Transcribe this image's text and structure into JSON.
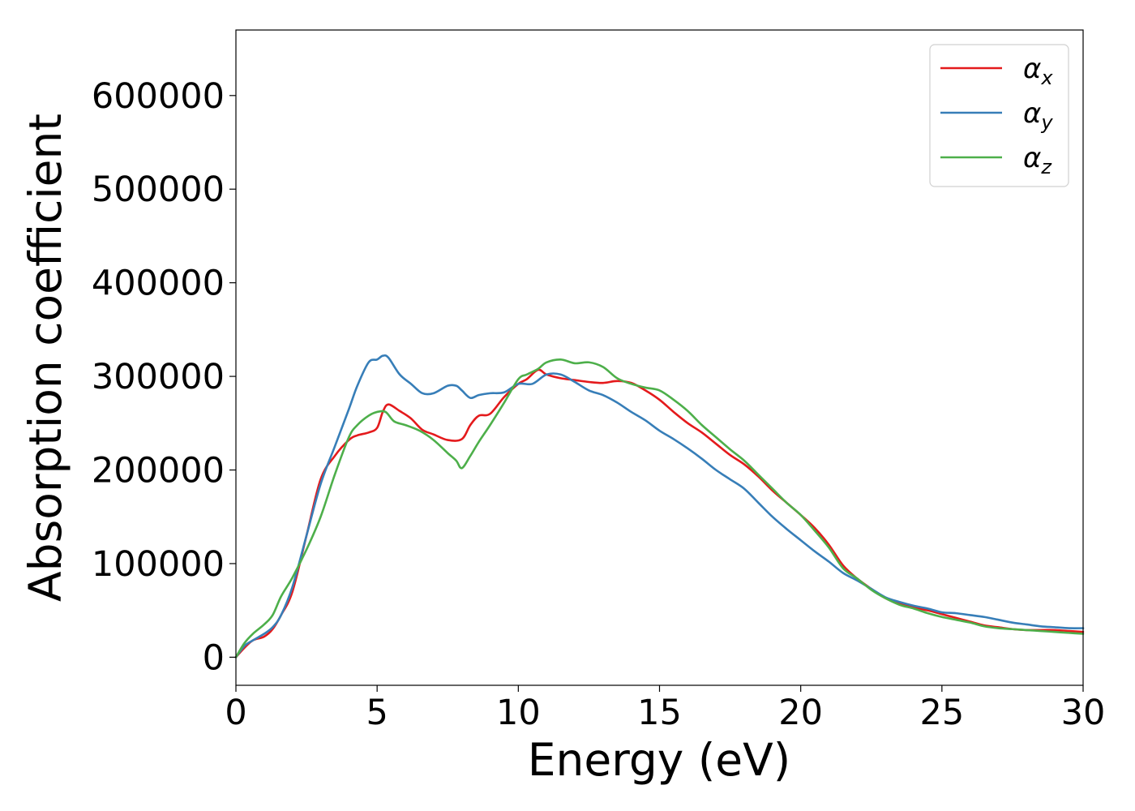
{
  "chart_data": {
    "type": "line",
    "title": "",
    "xlabel": "Energy (eV)",
    "ylabel": "Absorption coefficient",
    "xlim": [
      0,
      30
    ],
    "ylim": [
      -30000,
      670000
    ],
    "xticks": [
      0,
      5,
      10,
      15,
      20,
      25,
      30
    ],
    "yticks": [
      0,
      100000,
      200000,
      300000,
      400000,
      500000,
      600000
    ],
    "xtick_labels": [
      "0",
      "5",
      "10",
      "15",
      "20",
      "25",
      "30"
    ],
    "ytick_labels": [
      "0",
      "100000",
      "200000",
      "300000",
      "400000",
      "500000",
      "600000"
    ],
    "grid": false,
    "legend_position": "top-right",
    "series": [
      {
        "name": "α",
        "subscript": "x",
        "color": "#e41a1c",
        "x": [
          0,
          0.3,
          0.6,
          1.0,
          1.3,
          1.6,
          2.0,
          2.5,
          3.0,
          3.5,
          4.0,
          4.3,
          4.7,
          5.0,
          5.2,
          5.4,
          5.8,
          6.2,
          6.6,
          7.0,
          7.5,
          8.0,
          8.3,
          8.6,
          9.0,
          9.5,
          10.0,
          10.3,
          10.7,
          11.0,
          11.5,
          12.0,
          12.5,
          13.0,
          13.5,
          14.0,
          14.5,
          15.0,
          15.5,
          16.0,
          16.5,
          17.0,
          17.5,
          18.0,
          18.5,
          19.0,
          19.5,
          20.0,
          20.5,
          21.0,
          21.5,
          22.0,
          22.5,
          23.0,
          23.5,
          24.0,
          24.5,
          25.0,
          25.5,
          26.0,
          26.5,
          27.0,
          27.5,
          28.0,
          28.5,
          29.0,
          29.5,
          30.0
        ],
        "values": [
          0,
          10000,
          18000,
          22000,
          30000,
          45000,
          70000,
          130000,
          190000,
          215000,
          232000,
          237000,
          240000,
          245000,
          262000,
          270000,
          263000,
          255000,
          243000,
          238000,
          232000,
          233000,
          248000,
          258000,
          260000,
          278000,
          292000,
          297000,
          307000,
          302000,
          298000,
          296000,
          294000,
          293000,
          295000,
          293000,
          285000,
          275000,
          262000,
          250000,
          240000,
          228000,
          216000,
          206000,
          193000,
          178000,
          165000,
          152000,
          138000,
          120000,
          98000,
          84000,
          73000,
          63000,
          57000,
          53000,
          50000,
          46000,
          42000,
          38000,
          34000,
          32000,
          30000,
          29000,
          29000,
          29000,
          28000,
          27000
        ]
      },
      {
        "name": "α",
        "subscript": "y",
        "color": "#377eb8",
        "x": [
          0,
          0.3,
          0.6,
          1.0,
          1.3,
          1.6,
          2.0,
          2.5,
          3.0,
          3.5,
          4.0,
          4.3,
          4.7,
          5.0,
          5.2,
          5.4,
          5.8,
          6.2,
          6.6,
          7.0,
          7.5,
          7.8,
          8.0,
          8.3,
          8.6,
          9.0,
          9.5,
          10.0,
          10.5,
          11.0,
          11.5,
          12.0,
          12.5,
          13.0,
          13.5,
          14.0,
          14.5,
          15.0,
          15.5,
          16.0,
          16.5,
          17.0,
          17.5,
          18.0,
          18.5,
          19.0,
          19.5,
          20.0,
          20.5,
          21.0,
          21.5,
          22.0,
          22.5,
          23.0,
          23.5,
          24.0,
          24.5,
          25.0,
          25.5,
          26.0,
          26.5,
          27.0,
          27.5,
          28.0,
          28.5,
          29.0,
          29.5,
          30.0
        ],
        "values": [
          0,
          12000,
          18000,
          25000,
          32000,
          45000,
          75000,
          130000,
          185000,
          225000,
          265000,
          290000,
          315000,
          318000,
          322000,
          320000,
          302000,
          292000,
          282000,
          282000,
          290000,
          290000,
          285000,
          277000,
          280000,
          282000,
          283000,
          292000,
          292000,
          302000,
          302000,
          294000,
          285000,
          280000,
          272000,
          262000,
          253000,
          242000,
          233000,
          223000,
          212000,
          200000,
          190000,
          180000,
          165000,
          150000,
          137000,
          125000,
          113000,
          102000,
          90000,
          82000,
          73000,
          64000,
          59000,
          55000,
          52000,
          48000,
          47000,
          45000,
          43000,
          40000,
          37000,
          35000,
          33000,
          32000,
          31000,
          31000
        ]
      },
      {
        "name": "α",
        "subscript": "z",
        "color": "#4daf4a",
        "x": [
          0,
          0.3,
          0.6,
          1.0,
          1.3,
          1.6,
          2.0,
          2.5,
          3.0,
          3.5,
          4.0,
          4.3,
          4.7,
          5.0,
          5.3,
          5.6,
          6.0,
          6.5,
          7.0,
          7.5,
          7.8,
          8.0,
          8.3,
          8.6,
          9.0,
          9.5,
          10.0,
          10.3,
          10.7,
          11.0,
          11.5,
          12.0,
          12.5,
          13.0,
          13.5,
          14.0,
          14.5,
          15.0,
          15.5,
          16.0,
          16.5,
          17.0,
          17.5,
          18.0,
          18.5,
          19.0,
          19.5,
          20.0,
          20.5,
          21.0,
          21.5,
          22.0,
          22.5,
          23.0,
          23.5,
          24.0,
          24.5,
          25.0,
          25.5,
          26.0,
          26.5,
          27.0,
          27.5,
          28.0,
          28.5,
          29.0,
          29.5,
          30.0
        ],
        "values": [
          0,
          15000,
          25000,
          35000,
          45000,
          65000,
          85000,
          115000,
          150000,
          195000,
          235000,
          248000,
          258000,
          262000,
          262000,
          252000,
          248000,
          242000,
          232000,
          218000,
          210000,
          202000,
          215000,
          230000,
          248000,
          272000,
          297000,
          302000,
          308000,
          315000,
          318000,
          314000,
          315000,
          310000,
          298000,
          292000,
          288000,
          285000,
          275000,
          263000,
          248000,
          235000,
          222000,
          210000,
          195000,
          180000,
          165000,
          152000,
          135000,
          117000,
          95000,
          84000,
          72000,
          63000,
          56000,
          52000,
          47000,
          43000,
          40000,
          37000,
          33000,
          31000,
          30000,
          29000,
          28000,
          27000,
          26000,
          25000
        ]
      }
    ]
  }
}
